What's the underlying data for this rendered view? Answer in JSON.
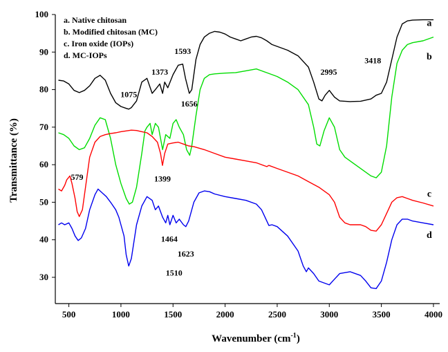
{
  "chart_data": {
    "type": "line",
    "xlabel": "Wavenumber (cm",
    "xlabel_sup": "-1",
    "xlabel_close": ")",
    "ylabel": "Transmittance (%)",
    "xlim": [
      370,
      4060
    ],
    "ylim": [
      23,
      100
    ],
    "xticks": [
      500,
      1000,
      1500,
      2000,
      2500,
      3000,
      3500,
      4000
    ],
    "yticks": [
      30,
      40,
      50,
      60,
      70,
      80,
      90,
      100
    ],
    "legend": [
      "a. Native chitosan",
      "b. Modified chitosan (MC)",
      "c. Iron oxide (IOPs)",
      "d. MC-IOPs"
    ],
    "series": [
      {
        "name": "a",
        "color": "#000000",
        "points": [
          [
            400,
            82.5
          ],
          [
            450,
            82.3
          ],
          [
            500,
            81.5
          ],
          [
            550,
            79.8
          ],
          [
            600,
            79.2
          ],
          [
            650,
            79.8
          ],
          [
            700,
            81
          ],
          [
            750,
            83
          ],
          [
            800,
            83.8
          ],
          [
            850,
            82.5
          ],
          [
            900,
            79
          ],
          [
            950,
            76.5
          ],
          [
            1000,
            75.5
          ],
          [
            1050,
            75
          ],
          [
            1075,
            74.8
          ],
          [
            1100,
            75.2
          ],
          [
            1150,
            77
          ],
          [
            1200,
            82
          ],
          [
            1250,
            83
          ],
          [
            1300,
            79
          ],
          [
            1330,
            80
          ],
          [
            1373,
            81.5
          ],
          [
            1400,
            79
          ],
          [
            1420,
            82
          ],
          [
            1450,
            80.5
          ],
          [
            1500,
            84
          ],
          [
            1550,
            86.5
          ],
          [
            1593,
            86.8
          ],
          [
            1620,
            83
          ],
          [
            1656,
            79
          ],
          [
            1680,
            80
          ],
          [
            1720,
            88
          ],
          [
            1760,
            92
          ],
          [
            1800,
            94
          ],
          [
            1850,
            95
          ],
          [
            1900,
            95.5
          ],
          [
            1950,
            95.3
          ],
          [
            2000,
            94.8
          ],
          [
            2050,
            94
          ],
          [
            2100,
            93.5
          ],
          [
            2150,
            93
          ],
          [
            2200,
            93.5
          ],
          [
            2250,
            94
          ],
          [
            2300,
            94.2
          ],
          [
            2350,
            93.8
          ],
          [
            2400,
            93
          ],
          [
            2450,
            92
          ],
          [
            2500,
            91.5
          ],
          [
            2600,
            90.5
          ],
          [
            2700,
            89
          ],
          [
            2800,
            86
          ],
          [
            2850,
            82
          ],
          [
            2900,
            77.5
          ],
          [
            2930,
            77
          ],
          [
            2960,
            78.5
          ],
          [
            3000,
            79.8
          ],
          [
            3050,
            78
          ],
          [
            3100,
            77
          ],
          [
            3200,
            76.8
          ],
          [
            3300,
            76.9
          ],
          [
            3400,
            77.5
          ],
          [
            3450,
            78.5
          ],
          [
            3500,
            79
          ],
          [
            3550,
            82
          ],
          [
            3600,
            88
          ],
          [
            3650,
            94
          ],
          [
            3700,
            97.5
          ],
          [
            3750,
            98.3
          ],
          [
            3800,
            98.5
          ],
          [
            3900,
            98.6
          ],
          [
            4000,
            98.6
          ]
        ]
      },
      {
        "name": "b",
        "color": "#00dd00",
        "points": [
          [
            400,
            68.5
          ],
          [
            450,
            68
          ],
          [
            500,
            67
          ],
          [
            550,
            65
          ],
          [
            600,
            64
          ],
          [
            650,
            64.5
          ],
          [
            700,
            67
          ],
          [
            750,
            70.5
          ],
          [
            800,
            72.5
          ],
          [
            850,
            72
          ],
          [
            900,
            67
          ],
          [
            950,
            60
          ],
          [
            1000,
            55
          ],
          [
            1050,
            51
          ],
          [
            1080,
            49.5
          ],
          [
            1110,
            50
          ],
          [
            1150,
            54
          ],
          [
            1200,
            63
          ],
          [
            1230,
            69
          ],
          [
            1250,
            70
          ],
          [
            1280,
            71
          ],
          [
            1300,
            68
          ],
          [
            1330,
            71
          ],
          [
            1360,
            70
          ],
          [
            1400,
            64
          ],
          [
            1430,
            68
          ],
          [
            1470,
            67
          ],
          [
            1500,
            71
          ],
          [
            1530,
            72
          ],
          [
            1560,
            70
          ],
          [
            1600,
            68
          ],
          [
            1630,
            64
          ],
          [
            1660,
            62.5
          ],
          [
            1680,
            65
          ],
          [
            1720,
            73
          ],
          [
            1760,
            80
          ],
          [
            1800,
            83
          ],
          [
            1850,
            84
          ],
          [
            1900,
            84.2
          ],
          [
            2000,
            84.4
          ],
          [
            2100,
            84.5
          ],
          [
            2200,
            85
          ],
          [
            2300,
            85.5
          ],
          [
            2350,
            85
          ],
          [
            2400,
            84.5
          ],
          [
            2450,
            84
          ],
          [
            2500,
            83.5
          ],
          [
            2600,
            82
          ],
          [
            2700,
            80
          ],
          [
            2800,
            76
          ],
          [
            2850,
            70
          ],
          [
            2880,
            65.5
          ],
          [
            2910,
            65
          ],
          [
            2950,
            69
          ],
          [
            3000,
            72.5
          ],
          [
            3050,
            70
          ],
          [
            3100,
            64
          ],
          [
            3150,
            62
          ],
          [
            3200,
            61
          ],
          [
            3300,
            59
          ],
          [
            3400,
            57
          ],
          [
            3450,
            56.5
          ],
          [
            3500,
            58
          ],
          [
            3550,
            65
          ],
          [
            3600,
            78
          ],
          [
            3650,
            87
          ],
          [
            3700,
            90.5
          ],
          [
            3750,
            92
          ],
          [
            3800,
            92.5
          ],
          [
            3900,
            93
          ],
          [
            4000,
            94
          ]
        ]
      },
      {
        "name": "c",
        "color": "#ff0000",
        "points": [
          [
            400,
            53.5
          ],
          [
            430,
            53
          ],
          [
            460,
            54.5
          ],
          [
            480,
            56
          ],
          [
            510,
            57
          ],
          [
            530,
            55
          ],
          [
            560,
            51
          ],
          [
            580,
            47.5
          ],
          [
            600,
            46.2
          ],
          [
            630,
            48
          ],
          [
            660,
            54
          ],
          [
            700,
            62
          ],
          [
            750,
            66
          ],
          [
            800,
            67.5
          ],
          [
            850,
            68
          ],
          [
            900,
            68.3
          ],
          [
            950,
            68.5
          ],
          [
            1000,
            68.8
          ],
          [
            1050,
            69
          ],
          [
            1100,
            69.2
          ],
          [
            1150,
            69.1
          ],
          [
            1200,
            68.8
          ],
          [
            1250,
            68.5
          ],
          [
            1300,
            67.5
          ],
          [
            1350,
            66
          ],
          [
            1380,
            63
          ],
          [
            1399,
            59.8
          ],
          [
            1420,
            63
          ],
          [
            1450,
            65.5
          ],
          [
            1500,
            65.8
          ],
          [
            1550,
            66
          ],
          [
            1600,
            65.5
          ],
          [
            1650,
            65
          ],
          [
            1700,
            64.8
          ],
          [
            1800,
            64
          ],
          [
            1900,
            63
          ],
          [
            2000,
            62
          ],
          [
            2100,
            61.5
          ],
          [
            2200,
            61
          ],
          [
            2300,
            60.5
          ],
          [
            2400,
            59.5
          ],
          [
            2420,
            59.8
          ],
          [
            2500,
            59
          ],
          [
            2600,
            58
          ],
          [
            2700,
            57
          ],
          [
            2800,
            55.5
          ],
          [
            2900,
            54
          ],
          [
            3000,
            52
          ],
          [
            3050,
            50
          ],
          [
            3100,
            46
          ],
          [
            3150,
            44.5
          ],
          [
            3200,
            44
          ],
          [
            3300,
            44
          ],
          [
            3350,
            43.5
          ],
          [
            3400,
            42.5
          ],
          [
            3450,
            42.3
          ],
          [
            3500,
            44
          ],
          [
            3550,
            47
          ],
          [
            3600,
            50
          ],
          [
            3650,
            51.2
          ],
          [
            3700,
            51.5
          ],
          [
            3750,
            51
          ],
          [
            3800,
            50.5
          ],
          [
            3900,
            49.8
          ],
          [
            4000,
            49
          ]
        ]
      },
      {
        "name": "d",
        "color": "#0000ee",
        "points": [
          [
            400,
            44
          ],
          [
            430,
            44.5
          ],
          [
            460,
            44
          ],
          [
            500,
            44.5
          ],
          [
            530,
            43
          ],
          [
            560,
            41
          ],
          [
            590,
            39.8
          ],
          [
            620,
            40.5
          ],
          [
            660,
            43
          ],
          [
            700,
            48
          ],
          [
            750,
            52
          ],
          [
            780,
            53.5
          ],
          [
            820,
            52.5
          ],
          [
            860,
            51.5
          ],
          [
            900,
            50
          ],
          [
            950,
            48
          ],
          [
            980,
            46
          ],
          [
            1000,
            44
          ],
          [
            1030,
            41
          ],
          [
            1050,
            36
          ],
          [
            1075,
            33
          ],
          [
            1100,
            35
          ],
          [
            1150,
            44
          ],
          [
            1200,
            49
          ],
          [
            1250,
            51.5
          ],
          [
            1300,
            50.5
          ],
          [
            1330,
            48
          ],
          [
            1360,
            49
          ],
          [
            1400,
            46
          ],
          [
            1430,
            44.5
          ],
          [
            1450,
            46.5
          ],
          [
            1470,
            44
          ],
          [
            1500,
            46.5
          ],
          [
            1530,
            44.5
          ],
          [
            1560,
            45.5
          ],
          [
            1600,
            44
          ],
          [
            1623,
            43.5
          ],
          [
            1650,
            45
          ],
          [
            1700,
            50
          ],
          [
            1750,
            52.5
          ],
          [
            1800,
            53
          ],
          [
            1850,
            52.8
          ],
          [
            1900,
            52.2
          ],
          [
            2000,
            51.5
          ],
          [
            2100,
            51
          ],
          [
            2200,
            50.5
          ],
          [
            2300,
            49.5
          ],
          [
            2350,
            48
          ],
          [
            2400,
            45
          ],
          [
            2420,
            43.8
          ],
          [
            2450,
            44
          ],
          [
            2500,
            43.5
          ],
          [
            2600,
            41
          ],
          [
            2700,
            37
          ],
          [
            2750,
            33
          ],
          [
            2780,
            31.5
          ],
          [
            2800,
            32.5
          ],
          [
            2850,
            31
          ],
          [
            2900,
            29
          ],
          [
            2950,
            28.5
          ],
          [
            3000,
            28
          ],
          [
            3050,
            29.5
          ],
          [
            3100,
            31
          ],
          [
            3200,
            31.5
          ],
          [
            3300,
            30.5
          ],
          [
            3350,
            29
          ],
          [
            3400,
            27.2
          ],
          [
            3450,
            27
          ],
          [
            3500,
            29
          ],
          [
            3550,
            34
          ],
          [
            3600,
            40
          ],
          [
            3650,
            44
          ],
          [
            3700,
            45.5
          ],
          [
            3750,
            45.5
          ],
          [
            3800,
            45
          ],
          [
            3900,
            44.5
          ],
          [
            4000,
            44
          ]
        ]
      }
    ],
    "series_tags": [
      {
        "text": "a",
        "x": 3960,
        "y": 97
      },
      {
        "text": "b",
        "x": 3960,
        "y": 88
      },
      {
        "text": "c",
        "x": 3960,
        "y": 51.5
      },
      {
        "text": "d",
        "x": 3960,
        "y": 40.5
      }
    ],
    "annotations": [
      {
        "text": "1075",
        "x": 1075,
        "y": 78
      },
      {
        "text": "1373",
        "x": 1373,
        "y": 84
      },
      {
        "text": "1593",
        "x": 1593,
        "y": 89.5
      },
      {
        "text": "1656",
        "x": 1656,
        "y": 75.5
      },
      {
        "text": "2995",
        "x": 2995,
        "y": 84
      },
      {
        "text": "3418",
        "x": 3418,
        "y": 87
      },
      {
        "text": "579",
        "x": 579,
        "y": 56
      },
      {
        "text": "1399",
        "x": 1399,
        "y": 55.5
      },
      {
        "text": "1464",
        "x": 1464,
        "y": 39.5
      },
      {
        "text": "1623",
        "x": 1623,
        "y": 35.5
      },
      {
        "text": "1510",
        "x": 1510,
        "y": 30.5
      }
    ]
  }
}
